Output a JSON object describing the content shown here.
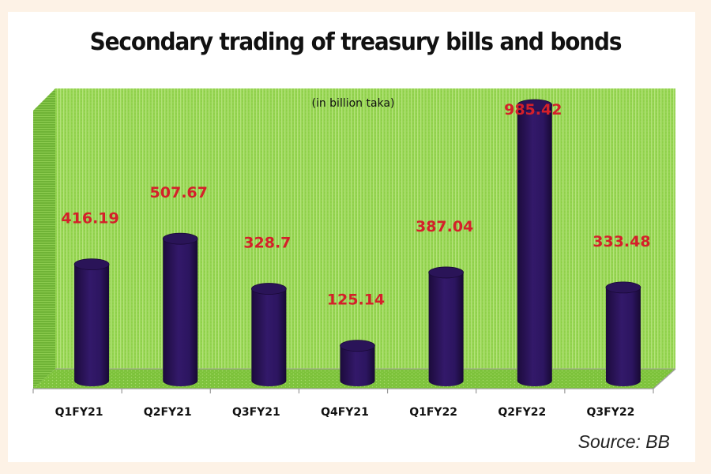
{
  "chart_data": {
    "type": "bar",
    "style": "3d-cylinder",
    "title": "Secondary trading of treasury bills and bonds",
    "subtitle": "(in billion taka)",
    "categories": [
      "Q1FY21",
      "Q2FY21",
      "Q3FY21",
      "Q4FY21",
      "Q1FY22",
      "Q2FY22",
      "Q3FY22"
    ],
    "values": [
      416.19,
      507.67,
      328.7,
      125.14,
      387.04,
      985.42,
      333.48
    ],
    "data_labels": [
      "416.19",
      "507.67",
      "328.7",
      "125.14",
      "387.04",
      "985.42",
      "333.48"
    ],
    "xlabel": "",
    "ylabel": "",
    "ylim": [
      0,
      1000
    ],
    "grid": false,
    "legend": "none",
    "source": "Source: BB",
    "colors": {
      "bar": "#2a1458",
      "label": "#d4202a",
      "wall": "#8fd14a",
      "floor": "#7cc23a"
    }
  }
}
